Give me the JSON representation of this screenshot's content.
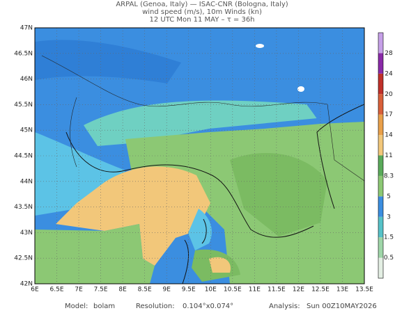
{
  "header": {
    "line1": "ARPAL (Genoa, Italy)  —  ISAC-CNR (Bologna, Italy)",
    "line2": "wind speed (m/s), 10m Winds (kn)",
    "line3": "12 UTC Mon 11 MAY  –  τ = 36h"
  },
  "map": {
    "lat_labels": [
      "42N",
      "42.5N",
      "43N",
      "43.5N",
      "44N",
      "44.5N",
      "45N",
      "45.5N",
      "46N",
      "46.5N",
      "47N"
    ],
    "lon_labels": [
      "6E",
      "6.5E",
      "7E",
      "7.5E",
      "8E",
      "8.5E",
      "9E",
      "9.5E",
      "10E",
      "10.5E",
      "11E",
      "11.5E",
      "12E",
      "12.5E",
      "13E",
      "13.5E"
    ]
  },
  "colorbar": {
    "labels": [
      "0.5",
      "1.5",
      "3",
      "5",
      "8.3",
      "11",
      "14",
      "17",
      "20",
      "24",
      "28"
    ]
  },
  "footer": {
    "model_label": "Model:",
    "model": "bolam",
    "resolution_label": "Resolution:",
    "resolution": "0.104°x0.074°",
    "analysis_label": "Analysis:",
    "analysis": "Sun 00Z10MAY2026"
  }
}
